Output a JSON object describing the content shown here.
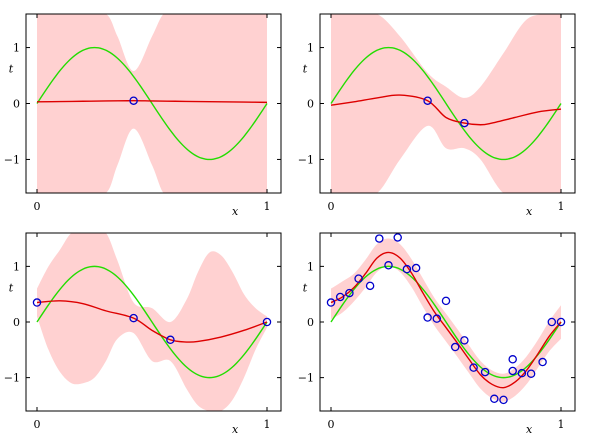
{
  "chart_data": [
    {
      "type": "line",
      "panel": "top-left",
      "xlabel": "x",
      "ylabel": "t",
      "xlim": [
        0,
        1
      ],
      "ylim": [
        -1.6,
        1.6
      ],
      "xticks": [
        "0",
        "1"
      ],
      "yticks": [
        "1",
        "0",
        "−1"
      ],
      "grid": false,
      "colors": {
        "true_function": "#22dd00",
        "predictive_mean": "#dd0000",
        "uncertainty_band": "#ffd1d1",
        "observations": "#0000cc"
      },
      "observations": {
        "x": [
          0.42
        ],
        "t": [
          0.05
        ]
      },
      "predictive_mean": {
        "x": [
          0.0,
          0.1,
          0.2,
          0.3,
          0.42,
          0.5,
          0.6,
          0.7,
          0.8,
          0.9,
          1.0
        ],
        "y": [
          0.03,
          0.035,
          0.04,
          0.045,
          0.05,
          0.045,
          0.04,
          0.035,
          0.03,
          0.025,
          0.02
        ]
      },
      "uncertainty_band": {
        "x": [
          0.0,
          0.1,
          0.2,
          0.3,
          0.35,
          0.42,
          0.5,
          0.55,
          0.6,
          0.7,
          0.8,
          0.9,
          1.0
        ],
        "upper": [
          1.6,
          1.6,
          1.6,
          1.6,
          1.2,
          0.58,
          1.2,
          1.6,
          1.6,
          1.6,
          1.6,
          1.6,
          1.6
        ],
        "lower": [
          -1.6,
          -1.6,
          -1.6,
          -1.6,
          -1.1,
          -0.45,
          -1.1,
          -1.6,
          -1.6,
          -1.6,
          -1.6,
          -1.6,
          -1.6
        ]
      }
    },
    {
      "type": "line",
      "panel": "top-right",
      "xlabel": "x",
      "ylabel": "t",
      "xlim": [
        0,
        1
      ],
      "ylim": [
        -1.6,
        1.6
      ],
      "xticks": [
        "0",
        "1"
      ],
      "yticks": [
        "1",
        "0",
        "−1"
      ],
      "grid": false,
      "colors": {
        "true_function": "#22dd00",
        "predictive_mean": "#dd0000",
        "uncertainty_band": "#ffd1d1",
        "observations": "#0000cc"
      },
      "observations": {
        "x": [
          0.42,
          0.58
        ],
        "t": [
          0.05,
          -0.35
        ]
      },
      "predictive_mean": {
        "x": [
          0.0,
          0.1,
          0.2,
          0.3,
          0.42,
          0.5,
          0.58,
          0.65,
          0.7,
          0.8,
          0.9,
          1.0
        ],
        "y": [
          -0.03,
          0.03,
          0.1,
          0.15,
          0.05,
          -0.25,
          -0.35,
          -0.38,
          -0.35,
          -0.25,
          -0.15,
          -0.1
        ]
      },
      "uncertainty_band": {
        "x": [
          0.0,
          0.1,
          0.2,
          0.3,
          0.42,
          0.5,
          0.58,
          0.65,
          0.75,
          0.85,
          0.95,
          1.0
        ],
        "upper": [
          1.6,
          1.6,
          1.6,
          1.2,
          0.55,
          0.3,
          0.1,
          0.3,
          0.9,
          1.5,
          1.6,
          1.6
        ],
        "lower": [
          -1.6,
          -1.6,
          -1.6,
          -1.0,
          -0.4,
          -0.8,
          -0.8,
          -1.0,
          -1.6,
          -1.6,
          -1.6,
          -1.6
        ]
      }
    },
    {
      "type": "line",
      "panel": "bottom-left",
      "xlabel": "x",
      "ylabel": "t",
      "xlim": [
        0,
        1
      ],
      "ylim": [
        -1.6,
        1.6
      ],
      "xticks": [
        "0",
        "1"
      ],
      "yticks": [
        "1",
        "0",
        "−1"
      ],
      "grid": false,
      "colors": {
        "true_function": "#22dd00",
        "predictive_mean": "#dd0000",
        "uncertainty_band": "#ffd1d1",
        "observations": "#0000cc"
      },
      "observations": {
        "x": [
          0.0,
          0.42,
          0.58,
          1.0
        ],
        "t": [
          0.35,
          0.07,
          -0.32,
          0.0
        ]
      },
      "predictive_mean": {
        "x": [
          0.0,
          0.1,
          0.2,
          0.3,
          0.42,
          0.5,
          0.58,
          0.65,
          0.7,
          0.8,
          0.9,
          1.0
        ],
        "y": [
          0.35,
          0.38,
          0.33,
          0.2,
          0.07,
          -0.15,
          -0.32,
          -0.36,
          -0.35,
          -0.27,
          -0.15,
          0.0
        ]
      },
      "uncertainty_band": {
        "x": [
          0.0,
          0.05,
          0.1,
          0.15,
          0.2,
          0.25,
          0.3,
          0.35,
          0.42,
          0.5,
          0.58,
          0.65,
          0.7,
          0.75,
          0.8,
          0.85,
          0.9,
          0.95,
          1.0
        ],
        "upper": [
          0.6,
          1.0,
          1.3,
          1.6,
          1.6,
          1.6,
          1.6,
          1.1,
          0.35,
          0.25,
          0.0,
          0.4,
          0.9,
          1.25,
          1.2,
          0.9,
          0.5,
          0.25,
          0.1
        ],
        "lower": [
          0.1,
          -0.5,
          -0.9,
          -1.1,
          -1.1,
          -1.0,
          -0.7,
          -0.3,
          -0.2,
          -0.7,
          -0.7,
          -1.2,
          -1.5,
          -1.6,
          -1.6,
          -1.4,
          -1.0,
          -0.5,
          -0.1
        ]
      }
    },
    {
      "type": "line",
      "panel": "bottom-right",
      "xlabel": "x",
      "ylabel": "t",
      "xlim": [
        0,
        1
      ],
      "ylim": [
        -1.6,
        1.6
      ],
      "xticks": [
        "0",
        "1"
      ],
      "yticks": [
        "1",
        "0",
        "−1"
      ],
      "grid": false,
      "colors": {
        "true_function": "#22dd00",
        "predictive_mean": "#dd0000",
        "uncertainty_band": "#ffd1d1",
        "observations": "#0000cc"
      },
      "observations": {
        "x": [
          0.0,
          0.04,
          0.08,
          0.12,
          0.17,
          0.21,
          0.25,
          0.29,
          0.33,
          0.37,
          0.42,
          0.46,
          0.5,
          0.54,
          0.58,
          0.62,
          0.67,
          0.71,
          0.75,
          0.79,
          0.79,
          0.83,
          0.87,
          0.92,
          0.96,
          1.0
        ],
        "t": [
          0.35,
          0.45,
          0.52,
          0.78,
          0.65,
          1.5,
          1.02,
          1.52,
          0.95,
          0.97,
          0.08,
          0.06,
          0.38,
          -0.45,
          -0.33,
          -0.82,
          -0.9,
          -1.38,
          -1.4,
          -0.67,
          -0.88,
          -0.92,
          -0.93,
          -0.72,
          0.0,
          0.0
        ]
      },
      "predictive_mean": {
        "x": [
          0.0,
          0.05,
          0.1,
          0.15,
          0.2,
          0.25,
          0.3,
          0.35,
          0.4,
          0.45,
          0.5,
          0.55,
          0.6,
          0.65,
          0.7,
          0.75,
          0.8,
          0.85,
          0.9,
          0.95,
          1.0
        ],
        "y": [
          0.35,
          0.45,
          0.62,
          0.87,
          1.15,
          1.25,
          1.15,
          0.88,
          0.52,
          0.18,
          -0.1,
          -0.38,
          -0.67,
          -0.95,
          -1.12,
          -1.18,
          -1.08,
          -0.87,
          -0.57,
          -0.25,
          0.0
        ]
      },
      "uncertainty_band": {
        "x": [
          0.0,
          0.05,
          0.1,
          0.15,
          0.2,
          0.25,
          0.3,
          0.35,
          0.4,
          0.45,
          0.5,
          0.55,
          0.6,
          0.65,
          0.7,
          0.75,
          0.8,
          0.85,
          0.9,
          0.95,
          1.0
        ],
        "upper": [
          0.6,
          0.73,
          0.87,
          1.12,
          1.4,
          1.5,
          1.4,
          1.13,
          0.78,
          0.43,
          0.15,
          -0.13,
          -0.42,
          -0.7,
          -0.87,
          -0.93,
          -0.83,
          -0.62,
          -0.32,
          0.02,
          0.3
        ],
        "lower": [
          0.05,
          0.17,
          0.37,
          0.62,
          0.9,
          1.0,
          0.9,
          0.63,
          0.27,
          -0.07,
          -0.35,
          -0.63,
          -0.92,
          -1.2,
          -1.37,
          -1.43,
          -1.33,
          -1.12,
          -0.82,
          -0.52,
          -0.3
        ]
      }
    }
  ]
}
